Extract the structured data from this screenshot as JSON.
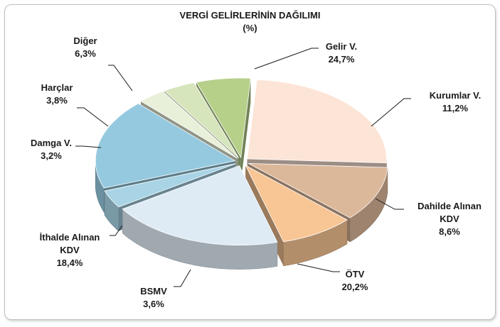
{
  "chart_data": {
    "type": "pie",
    "title": "VERGİ GELİRLERİNİN DAĞILIMI",
    "subtitle": "(%)",
    "slices": [
      {
        "name": "Gelir V.",
        "value": 24.7,
        "value_label": "24,7%",
        "color": "#fce4d6"
      },
      {
        "name": "Kurumlar V.",
        "value": 11.2,
        "value_label": "11,2%",
        "color": "#dcb89a"
      },
      {
        "name": "Dahilde Alınan KDV",
        "value": 8.6,
        "value_label": "8,6%",
        "color": "#f8c595"
      },
      {
        "name": "ÖTV",
        "value": 20.2,
        "value_label": "20,2%",
        "color": "#deebf5"
      },
      {
        "name": "BSMV",
        "value": 3.6,
        "value_label": "3,6%",
        "color": "#a8d4e6"
      },
      {
        "name": "İthalde Alınan KDV",
        "value": 18.4,
        "value_label": "18,4%",
        "color": "#95c9df"
      },
      {
        "name": "Damga V.",
        "value": 3.2,
        "value_label": "3,2%",
        "color": "#e9f0d9"
      },
      {
        "name": "Harçlar",
        "value": 3.8,
        "value_label": "3,8%",
        "color": "#d7e5bd"
      },
      {
        "name": "Diğer",
        "value": 6.3,
        "value_label": "6,3%",
        "color": "#b6d08a"
      }
    ]
  }
}
